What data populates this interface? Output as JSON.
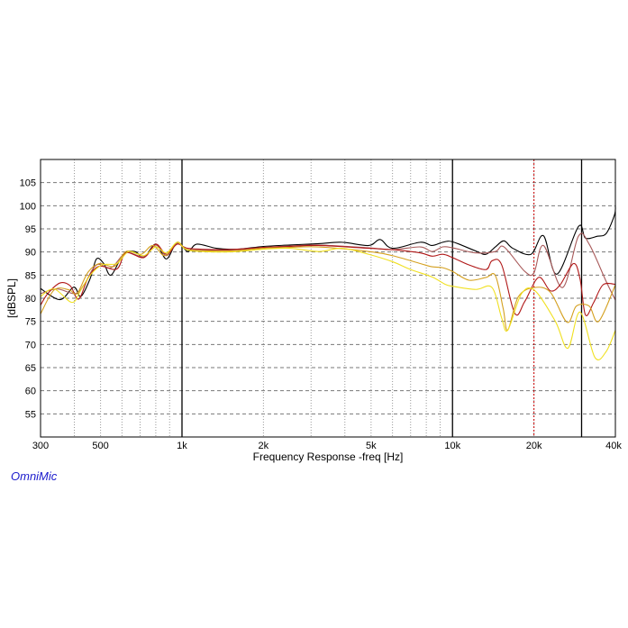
{
  "chart_data": {
    "type": "line",
    "title": "",
    "xlabel": "Frequency Response -freq [Hz]",
    "ylabel": "[dBSPL]",
    "xscale": "log",
    "xlim": [
      300,
      40000
    ],
    "ylim": [
      50,
      110
    ],
    "grid": true,
    "legend": "none",
    "brand": "OmniMic",
    "xticks": [
      {
        "value": 300,
        "label": "300"
      },
      {
        "value": 500,
        "label": "500"
      },
      {
        "value": 1000,
        "label": "1k"
      },
      {
        "value": 2000,
        "label": "2k"
      },
      {
        "value": 5000,
        "label": "5k"
      },
      {
        "value": 10000,
        "label": "10k"
      },
      {
        "value": 20000,
        "label": "20k"
      },
      {
        "value": 40000,
        "label": "40k"
      }
    ],
    "yticks": [
      55,
      60,
      65,
      70,
      75,
      80,
      85,
      90,
      95,
      100,
      105
    ],
    "markers": [
      {
        "value": 1000,
        "color": "#000000",
        "style": "solid"
      },
      {
        "value": 10000,
        "color": "#000000",
        "style": "solid"
      },
      {
        "value": 20000,
        "color": "#cc0000",
        "style": "dashed"
      },
      {
        "value": 30000,
        "color": "#000000",
        "style": "solid"
      }
    ],
    "series": [
      {
        "name": "curve-1",
        "color": "#000000",
        "points": [
          [
            300,
            82.1
          ],
          [
            354,
            79.7
          ],
          [
            398,
            82.4
          ],
          [
            423,
            80.4
          ],
          [
            458,
            84.3
          ],
          [
            483,
            88.5
          ],
          [
            514,
            87.5
          ],
          [
            547,
            85
          ],
          [
            607,
            89.5
          ],
          [
            670,
            90.1
          ],
          [
            723,
            88.8
          ],
          [
            800,
            91.7
          ],
          [
            876,
            88.5
          ],
          [
            960,
            92.1
          ],
          [
            1050,
            90.1
          ],
          [
            1135,
            91.7
          ],
          [
            1340,
            90.8
          ],
          [
            1600,
            90.6
          ],
          [
            2000,
            91.2
          ],
          [
            2500,
            91.5
          ],
          [
            3200,
            91.8
          ],
          [
            3900,
            92.1
          ],
          [
            4900,
            91.4
          ],
          [
            5400,
            92.7
          ],
          [
            6000,
            90.8
          ],
          [
            7600,
            92.1
          ],
          [
            8400,
            91.4
          ],
          [
            9200,
            92.1
          ],
          [
            10000,
            92.2
          ],
          [
            12200,
            90.2
          ],
          [
            13300,
            89.5
          ],
          [
            14400,
            91.1
          ],
          [
            15500,
            92.4
          ],
          [
            16700,
            90.8
          ],
          [
            19500,
            89.5
          ],
          [
            21700,
            93.5
          ],
          [
            24300,
            85.2
          ],
          [
            29200,
            95.5
          ],
          [
            31000,
            93
          ],
          [
            34300,
            93.4
          ],
          [
            37000,
            94
          ],
          [
            39700,
            98
          ],
          [
            40000,
            100
          ]
        ]
      },
      {
        "name": "curve-2",
        "color": "#a85a5a",
        "points": [
          [
            300,
            81
          ],
          [
            345,
            82
          ],
          [
            403,
            81
          ],
          [
            435,
            83
          ],
          [
            483,
            87.2
          ],
          [
            547,
            86.6
          ],
          [
            621,
            89.8
          ],
          [
            723,
            89
          ],
          [
            800,
            91.5
          ],
          [
            876,
            89.2
          ],
          [
            960,
            91.9
          ],
          [
            1050,
            90.5
          ],
          [
            1340,
            90.4
          ],
          [
            1600,
            90.5
          ],
          [
            2000,
            91
          ],
          [
            2500,
            91.3
          ],
          [
            3200,
            91.5
          ],
          [
            4900,
            90.9
          ],
          [
            6000,
            90.5
          ],
          [
            7600,
            91.1
          ],
          [
            9200,
            91.1
          ],
          [
            8400,
            90.1
          ],
          [
            10000,
            90.9
          ],
          [
            12200,
            89.8
          ],
          [
            14400,
            90.1
          ],
          [
            15500,
            91.1
          ],
          [
            18500,
            85.8
          ],
          [
            20000,
            85.5
          ],
          [
            21700,
            91.4
          ],
          [
            25500,
            82.3
          ],
          [
            29200,
            93.4
          ],
          [
            32000,
            91.7
          ],
          [
            37000,
            83.6
          ],
          [
            40000,
            79.6
          ]
        ]
      },
      {
        "name": "curve-3",
        "color": "#b01818",
        "points": [
          [
            300,
            78.5
          ],
          [
            319,
            81
          ],
          [
            354,
            83.3
          ],
          [
            386,
            82.7
          ],
          [
            415,
            79.8
          ],
          [
            449,
            84.3
          ],
          [
            494,
            86.9
          ],
          [
            574,
            86.3
          ],
          [
            621,
            89.8
          ],
          [
            723,
            88.8
          ],
          [
            800,
            91.7
          ],
          [
            876,
            89.5
          ],
          [
            960,
            91.7
          ],
          [
            1050,
            90.8
          ],
          [
            1340,
            90.5
          ],
          [
            1600,
            90.6
          ],
          [
            2000,
            91
          ],
          [
            2500,
            91.2
          ],
          [
            3200,
            91.4
          ],
          [
            4900,
            90.8
          ],
          [
            6000,
            90.5
          ],
          [
            7600,
            89.8
          ],
          [
            8400,
            89.1
          ],
          [
            9200,
            89.5
          ],
          [
            10000,
            88.8
          ],
          [
            11500,
            87.2
          ],
          [
            13300,
            86.2
          ],
          [
            14000,
            88.1
          ],
          [
            15200,
            87.2
          ],
          [
            17000,
            76.7
          ],
          [
            18500,
            79.3
          ],
          [
            20800,
            84.5
          ],
          [
            23000,
            81.6
          ],
          [
            25000,
            82.9
          ],
          [
            28000,
            87.5
          ],
          [
            29600,
            84.2
          ],
          [
            31000,
            76.4
          ],
          [
            33200,
            79
          ],
          [
            36000,
            82.9
          ],
          [
            40000,
            83
          ]
        ]
      },
      {
        "name": "curve-4",
        "color": "#d4a020",
        "points": [
          [
            300,
            76.6
          ],
          [
            337,
            81.8
          ],
          [
            383,
            81.8
          ],
          [
            409,
            81
          ],
          [
            449,
            85.6
          ],
          [
            494,
            87.5
          ],
          [
            563,
            86.9
          ],
          [
            621,
            90.1
          ],
          [
            706,
            89.5
          ],
          [
            780,
            91.4
          ],
          [
            865,
            89.2
          ],
          [
            960,
            92.1
          ],
          [
            1050,
            90.5
          ],
          [
            1340,
            90.2
          ],
          [
            1600,
            90.3
          ],
          [
            2000,
            90.8
          ],
          [
            2500,
            91
          ],
          [
            3200,
            91.1
          ],
          [
            4900,
            90.1
          ],
          [
            6000,
            89.2
          ],
          [
            7600,
            87.5
          ],
          [
            8400,
            86.8
          ],
          [
            9200,
            86.6
          ],
          [
            10000,
            85.8
          ],
          [
            11500,
            83.9
          ],
          [
            13300,
            84.5
          ],
          [
            14400,
            84.9
          ],
          [
            15400,
            77.7
          ],
          [
            16000,
            73.1
          ],
          [
            17500,
            80.3
          ],
          [
            20000,
            82.3
          ],
          [
            23000,
            81.3
          ],
          [
            26500,
            74.8
          ],
          [
            28700,
            78.3
          ],
          [
            32000,
            78.3
          ],
          [
            34700,
            75
          ],
          [
            40000,
            82.9
          ]
        ]
      },
      {
        "name": "curve-5",
        "color": "#f0e020",
        "points": [
          [
            300,
            80.4
          ],
          [
            337,
            82
          ],
          [
            392,
            79.1
          ],
          [
            423,
            81.8
          ],
          [
            458,
            85
          ],
          [
            506,
            87.2
          ],
          [
            574,
            87.5
          ],
          [
            636,
            90.1
          ],
          [
            723,
            89.2
          ],
          [
            800,
            91.1
          ],
          [
            876,
            89.8
          ],
          [
            960,
            92.1
          ],
          [
            1050,
            90.4
          ],
          [
            1340,
            90
          ],
          [
            1600,
            90.1
          ],
          [
            2000,
            90.6
          ],
          [
            2500,
            90.8
          ],
          [
            3200,
            90.1
          ],
          [
            3900,
            90.8
          ],
          [
            4900,
            89.5
          ],
          [
            6000,
            87.9
          ],
          [
            7000,
            86.2
          ],
          [
            8400,
            84.6
          ],
          [
            9400,
            83
          ],
          [
            10000,
            82.6
          ],
          [
            12200,
            81.9
          ],
          [
            14000,
            82.3
          ],
          [
            15200,
            75.7
          ],
          [
            16000,
            73.1
          ],
          [
            18000,
            81
          ],
          [
            20200,
            81.6
          ],
          [
            24000,
            75
          ],
          [
            26700,
            69.2
          ],
          [
            29600,
            77
          ],
          [
            33600,
            67.2
          ],
          [
            37000,
            68.5
          ],
          [
            40000,
            73.1
          ]
        ]
      }
    ]
  }
}
